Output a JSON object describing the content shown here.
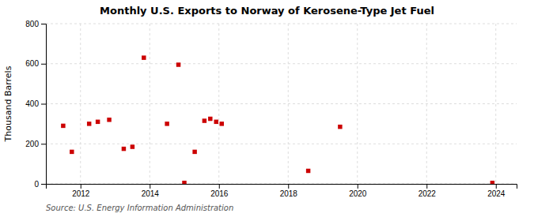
{
  "chart_data": {
    "type": "scatter",
    "title": "Monthly U.S. Exports to Norway of Kerosene-Type Jet Fuel",
    "ylabel": "Thousand Barrels",
    "source": "Source: U.S. Energy Information Administration",
    "x": [
      2011.5,
      2011.75,
      2012.25,
      2012.5,
      2012.83,
      2013.25,
      2013.5,
      2013.83,
      2014.5,
      2014.83,
      2015.0,
      2015.3,
      2015.58,
      2015.75,
      2015.92,
      2016.08,
      2018.58,
      2019.5,
      2023.9
    ],
    "values": [
      290,
      160,
      300,
      310,
      320,
      175,
      185,
      630,
      300,
      595,
      5,
      160,
      315,
      325,
      310,
      300,
      65,
      285,
      5
    ],
    "color": "#cc0000",
    "marker": "square",
    "xlim": [
      2011.0,
      2024.6
    ],
    "ylim": [
      0,
      800
    ],
    "xticks": [
      2012,
      2014,
      2016,
      2018,
      2020,
      2022,
      2024
    ],
    "yticks": [
      0,
      200,
      400,
      600,
      800
    ],
    "grid": true
  }
}
